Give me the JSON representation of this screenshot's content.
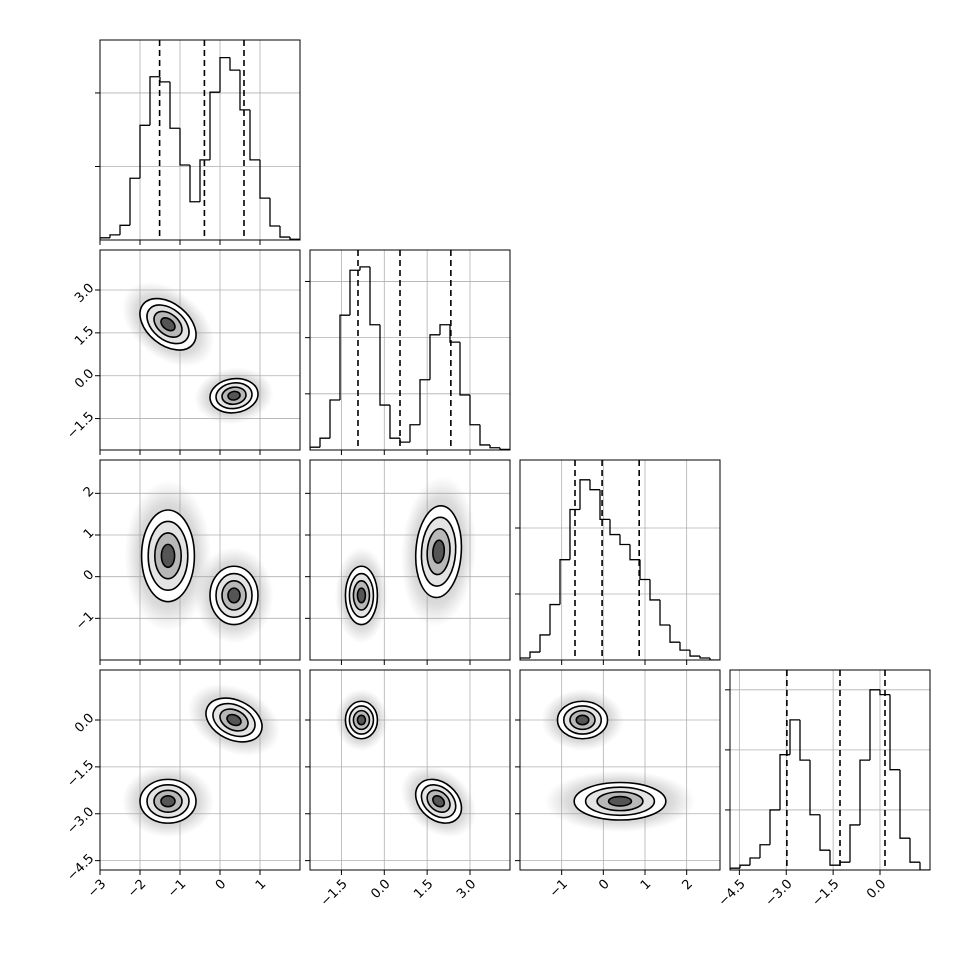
{
  "chart_data": {
    "type": "corner",
    "grid": true,
    "parameters": [
      {
        "xlim": [
          -3.0,
          2.0
        ],
        "ticks": [
          {
            "value": -3,
            "label": "−3"
          },
          {
            "value": -2,
            "label": "−2"
          },
          {
            "value": -1,
            "label": "−1"
          },
          0,
          1
        ],
        "quantiles": [
          -1.51,
          -0.39,
          0.6
        ],
        "bins": [
          -3.0,
          -2.75,
          -2.5,
          -2.25,
          -2.0,
          -1.75,
          -1.5,
          -1.25,
          -1.0,
          -0.75,
          -0.5,
          -0.25,
          0.0,
          0.25,
          0.5,
          0.75,
          1.0,
          1.25,
          1.5,
          1.75,
          2.0
        ],
        "counts": [
          3,
          7,
          20,
          84,
          156,
          222,
          215,
          152,
          102,
          52,
          109,
          201,
          248,
          231,
          177,
          109,
          57,
          19,
          4,
          1
        ],
        "hist_ylim": [
          0,
          272
        ],
        "hist_yticks": [
          100,
          200
        ]
      },
      {
        "xlim": [
          -2.6,
          4.4
        ],
        "ticks": [
          {
            "value": -1.5,
            "label": "−1.5"
          },
          {
            "value": 0,
            "label": "0.0"
          },
          {
            "value": 1.5,
            "label": "1.5"
          },
          {
            "value": 3,
            "label": "3.0"
          }
        ],
        "quantiles": [
          -0.92,
          0.55,
          2.33
        ],
        "bins": [
          -2.6,
          -2.25,
          -1.9,
          -1.55,
          -1.2,
          -0.85,
          -0.5,
          -0.15,
          0.2,
          0.55,
          0.9,
          1.25,
          1.6,
          1.95,
          2.3,
          2.65,
          3.0,
          3.35,
          3.7,
          4.05,
          4.4
        ],
        "counts": [
          5,
          21,
          89,
          240,
          320,
          326,
          223,
          80,
          21,
          14,
          45,
          125,
          205,
          223,
          192,
          98,
          45,
          9,
          4,
          1
        ],
        "hist_ylim": [
          0,
          356
        ],
        "hist_yticks": [
          100,
          200,
          300
        ]
      },
      {
        "xlim": [
          -2.0,
          2.8
        ],
        "ticks": [
          {
            "value": -1,
            "label": "−1"
          },
          0,
          1,
          2
        ],
        "quantiles": [
          -0.68,
          -0.03,
          0.86
        ],
        "bins": [
          -2.0,
          -1.76,
          -1.52,
          -1.28,
          -1.04,
          -0.8,
          -0.56,
          -0.32,
          -0.08,
          0.16,
          0.4,
          0.64,
          0.88,
          1.12,
          1.36,
          1.6,
          1.84,
          2.08,
          2.32,
          2.56,
          2.8
        ],
        "counts": [
          3,
          12,
          38,
          84,
          152,
          228,
          273,
          258,
          213,
          190,
          175,
          152,
          122,
          91,
          53,
          27,
          15,
          6,
          3,
          0
        ],
        "hist_ylim": [
          0,
          303
        ],
        "hist_yticks": [
          100,
          200
        ]
      },
      {
        "xlim": [
          -4.8,
          1.6
        ],
        "ticks": [
          {
            "value": -4.5,
            "label": "−4.5"
          },
          {
            "value": -3,
            "label": "−3.0"
          },
          {
            "value": -1.5,
            "label": "−1.5"
          },
          {
            "value": 0,
            "label": "0.0"
          }
        ],
        "quantiles": [
          -2.98,
          -1.28,
          0.16
        ],
        "bins": [
          -4.8,
          -4.48,
          -4.16,
          -3.84,
          -3.52,
          -3.2,
          -2.88,
          -2.56,
          -2.24,
          -1.92,
          -1.6,
          -1.28,
          -0.96,
          -0.64,
          -0.32,
          0.0,
          0.32,
          0.64,
          0.96,
          1.28,
          1.6
        ],
        "counts": [
          3,
          8,
          20,
          42,
          100,
          192,
          250,
          183,
          92,
          33,
          8,
          13,
          75,
          183,
          300,
          292,
          167,
          53,
          13,
          0
        ],
        "hist_ylim": [
          0,
          333
        ],
        "hist_yticks": [
          100,
          200,
          300
        ]
      }
    ],
    "panels": [
      {
        "clusters": [
          {
            "x": -1.3,
            "y": 1.8,
            "sx": 0.35,
            "sy": 0.45,
            "rho": -0.4
          },
          {
            "x": 0.35,
            "y": -0.7,
            "sx": 0.3,
            "sy": 0.3,
            "rho": 0.1
          }
        ]
      },
      {
        "clusters": [
          {
            "x": -1.3,
            "y": 0.5,
            "sx": 0.33,
            "sy": 0.55,
            "rho": 0
          },
          {
            "x": 0.35,
            "y": -0.45,
            "sx": 0.3,
            "sy": 0.35,
            "rho": 0
          }
        ]
      },
      {
        "clusters": [
          {
            "x": -0.8,
            "y": -0.45,
            "sx": 0.28,
            "sy": 0.35,
            "rho": 0
          },
          {
            "x": 1.9,
            "y": 0.6,
            "sx": 0.4,
            "sy": 0.55,
            "rho": 0.1
          }
        ]
      },
      {
        "clusters": [
          {
            "x": 0.35,
            "y": 0.0,
            "sx": 0.35,
            "sy": 0.35,
            "rho": -0.3
          },
          {
            "x": -1.3,
            "y": -2.6,
            "sx": 0.35,
            "sy": 0.35,
            "rho": 0
          }
        ]
      },
      {
        "clusters": [
          {
            "x": -0.8,
            "y": 0.0,
            "sx": 0.28,
            "sy": 0.3,
            "rho": 0
          },
          {
            "x": 1.9,
            "y": -2.6,
            "sx": 0.4,
            "sy": 0.35,
            "rho": -0.3
          }
        ]
      },
      {
        "clusters": [
          {
            "x": -0.5,
            "y": 0.0,
            "sx": 0.3,
            "sy": 0.3,
            "rho": 0
          },
          {
            "x": 0.4,
            "y": -2.6,
            "sx": 0.55,
            "sy": 0.3,
            "rho": 0
          }
        ]
      }
    ]
  }
}
